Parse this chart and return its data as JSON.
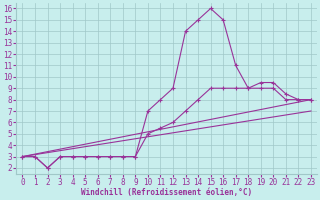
{
  "xlabel": "Windchill (Refroidissement éolien,°C)",
  "bg_color": "#c8eeed",
  "grid_color": "#a0c8c8",
  "line_color": "#993399",
  "xlim": [
    -0.5,
    23.5
  ],
  "ylim": [
    1.5,
    16.5
  ],
  "xticks": [
    0,
    1,
    2,
    3,
    4,
    5,
    6,
    7,
    8,
    9,
    10,
    11,
    12,
    13,
    14,
    15,
    16,
    17,
    18,
    19,
    20,
    21,
    22,
    23
  ],
  "yticks": [
    2,
    3,
    4,
    5,
    6,
    7,
    8,
    9,
    10,
    11,
    12,
    13,
    14,
    15,
    16
  ],
  "curve1_x": [
    0,
    1,
    2,
    3,
    4,
    5,
    6,
    7,
    8,
    9,
    10,
    11,
    12,
    13,
    14,
    15,
    16,
    17,
    18,
    19,
    20,
    21,
    22,
    23
  ],
  "curve1_y": [
    3,
    3,
    2,
    3,
    3,
    3,
    3,
    3,
    3,
    3,
    7,
    8,
    9,
    14,
    15,
    16,
    15,
    11,
    9,
    9,
    9,
    8,
    8,
    8
  ],
  "curve2_x": [
    0,
    23
  ],
  "curve2_y": [
    3,
    8
  ],
  "curve3_x": [
    0,
    23
  ],
  "curve3_y": [
    3,
    7
  ],
  "curve4_x": [
    0,
    1,
    2,
    3,
    4,
    5,
    6,
    7,
    8,
    9,
    10,
    11,
    12,
    13,
    14,
    15,
    16,
    17,
    18,
    19,
    20,
    21,
    22,
    23
  ],
  "curve4_y": [
    3,
    3,
    2,
    3,
    3,
    3,
    3,
    3,
    3,
    3,
    5,
    5.5,
    6,
    7,
    8,
    9,
    9,
    9,
    9,
    9.5,
    9.5,
    8.5,
    8,
    8
  ],
  "tick_fontsize": 5.5,
  "xlabel_fontsize": 5.5
}
